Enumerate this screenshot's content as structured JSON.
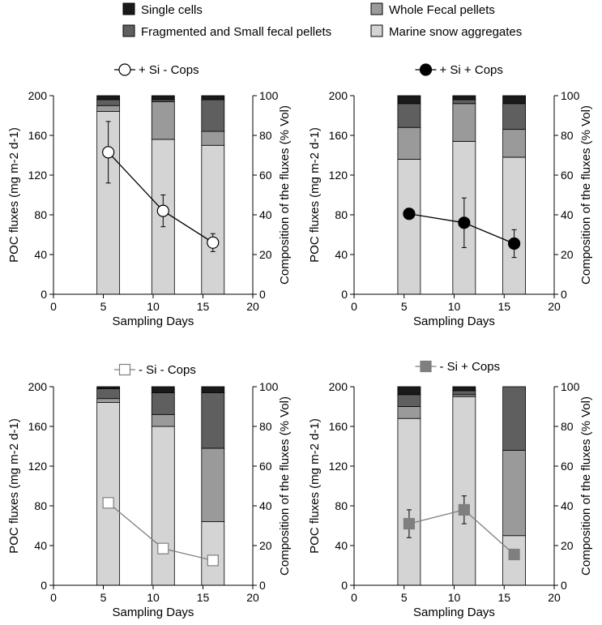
{
  "legend": {
    "items": [
      {
        "label": "Single cells",
        "color": "#1a1a1a"
      },
      {
        "label": "Whole Fecal pellets",
        "color": "#9a9a9a"
      },
      {
        "label": "Fragmented and Small fecal pellets",
        "color": "#5f5f5f"
      },
      {
        "label": "Marine snow aggregates",
        "color": "#d4d4d4"
      }
    ]
  },
  "chart_data": [
    {
      "type": "bar+line",
      "title": "+ Si - Cops",
      "marker": "circle",
      "marker_fill": "#ffffff",
      "line_color": "#000000",
      "xlabel": "Sampling Days",
      "ylabel": "POC fluxes (mg m-2 d-1)",
      "y2label": "Composition of the fluxes (% Vol)",
      "xlim": [
        0,
        20
      ],
      "ylim": [
        0,
        200
      ],
      "y2lim": [
        0,
        100
      ],
      "xticks": [
        "0",
        "5",
        "10",
        "15",
        "20"
      ],
      "yticks": [
        "0",
        "40",
        "80",
        "120",
        "160",
        "200"
      ],
      "y2ticks": [
        "0",
        "20",
        "40",
        "60",
        "80",
        "100"
      ],
      "bars": [
        {
          "x": 5.5,
          "marine_snow": 92,
          "fragmented": 3,
          "whole_fecal": 3,
          "single_cells": 2
        },
        {
          "x": 11,
          "marine_snow": 78,
          "fragmented": 1,
          "whole_fecal": 19,
          "single_cells": 2
        },
        {
          "x": 16,
          "marine_snow": 75,
          "fragmented": 16,
          "whole_fecal": 7,
          "single_cells": 2
        }
      ],
      "line": [
        {
          "x": 5.5,
          "y": 143,
          "err": 31
        },
        {
          "x": 11,
          "y": 84,
          "err": 16
        },
        {
          "x": 16,
          "y": 52,
          "err": 9
        }
      ]
    },
    {
      "type": "bar+line",
      "title": "+ Si + Cops",
      "marker": "circle",
      "marker_fill": "#000000",
      "line_color": "#000000",
      "xlabel": "Sampling Days",
      "ylabel": "POC fluxes (mg m-2 d-1)",
      "y2label": "Composition of the fluxes (% Vol)",
      "xlim": [
        0,
        20
      ],
      "ylim": [
        0,
        200
      ],
      "y2lim": [
        0,
        100
      ],
      "xticks": [
        "0",
        "5",
        "10",
        "15",
        "20"
      ],
      "yticks": [
        "0",
        "40",
        "80",
        "120",
        "160",
        "200"
      ],
      "y2ticks": [
        "0",
        "20",
        "40",
        "60",
        "80",
        "100"
      ],
      "bars": [
        {
          "x": 5.5,
          "marine_snow": 68,
          "fragmented": 12,
          "whole_fecal": 16,
          "single_cells": 4
        },
        {
          "x": 11,
          "marine_snow": 77,
          "fragmented": 2,
          "whole_fecal": 19,
          "single_cells": 2
        },
        {
          "x": 16,
          "marine_snow": 69,
          "fragmented": 13,
          "whole_fecal": 14,
          "single_cells": 4
        }
      ],
      "line": [
        {
          "x": 5.5,
          "y": 81,
          "err": 0
        },
        {
          "x": 11,
          "y": 72,
          "err": 25
        },
        {
          "x": 16,
          "y": 51,
          "err": 14
        }
      ]
    },
    {
      "type": "bar+line",
      "title": "- Si - Cops",
      "marker": "square",
      "marker_fill": "#ffffff",
      "line_color": "#7f7f7f",
      "xlabel": "Sampling Days",
      "ylabel": "POC fluxes (mg m-2 d-1)",
      "y2label": "Composition of the fluxes (% Vol)",
      "xlim": [
        0,
        20
      ],
      "ylim": [
        0,
        200
      ],
      "y2lim": [
        0,
        100
      ],
      "xticks": [
        "0",
        "5",
        "10",
        "15",
        "20"
      ],
      "yticks": [
        "0",
        "40",
        "80",
        "120",
        "160",
        "200"
      ],
      "y2ticks": [
        "0",
        "20",
        "40",
        "60",
        "80",
        "100"
      ],
      "bars": [
        {
          "x": 5.5,
          "marine_snow": 92,
          "fragmented": 5,
          "whole_fecal": 2,
          "single_cells": 1
        },
        {
          "x": 11,
          "marine_snow": 80,
          "fragmented": 11,
          "whole_fecal": 6,
          "single_cells": 3
        },
        {
          "x": 16,
          "marine_snow": 32,
          "fragmented": 28,
          "whole_fecal": 37,
          "single_cells": 3
        }
      ],
      "line": [
        {
          "x": 5.5,
          "y": 83,
          "err": 0
        },
        {
          "x": 11,
          "y": 37,
          "err": 5
        },
        {
          "x": 16,
          "y": 25,
          "err": 0
        }
      ]
    },
    {
      "type": "bar+line",
      "title": "- Si + Cops",
      "marker": "square",
      "marker_fill": "#7f7f7f",
      "line_color": "#7f7f7f",
      "xlabel": "Sampling Days",
      "ylabel": "POC fluxes (mg m-2 d-1)",
      "y2label": "Composition of the fluxes (% Vol)",
      "xlim": [
        0,
        20
      ],
      "ylim": [
        0,
        200
      ],
      "y2lim": [
        0,
        100
      ],
      "xticks": [
        "0",
        "5",
        "10",
        "15",
        "20"
      ],
      "yticks": [
        "0",
        "40",
        "80",
        "120",
        "160",
        "200"
      ],
      "y2ticks": [
        "0",
        "20",
        "40",
        "60",
        "80",
        "100"
      ],
      "bars": [
        {
          "x": 5.5,
          "marine_snow": 84,
          "fragmented": 6,
          "whole_fecal": 6,
          "single_cells": 4
        },
        {
          "x": 11,
          "marine_snow": 95,
          "fragmented": 2,
          "whole_fecal": 1,
          "single_cells": 2
        },
        {
          "x": 16,
          "marine_snow": 25,
          "fragmented": 32,
          "whole_fecal": 43,
          "single_cells": 0
        }
      ],
      "line": [
        {
          "x": 5.5,
          "y": 62,
          "err": 14
        },
        {
          "x": 11,
          "y": 76,
          "err": 14
        },
        {
          "x": 16,
          "y": 31,
          "err": 0
        }
      ]
    }
  ]
}
